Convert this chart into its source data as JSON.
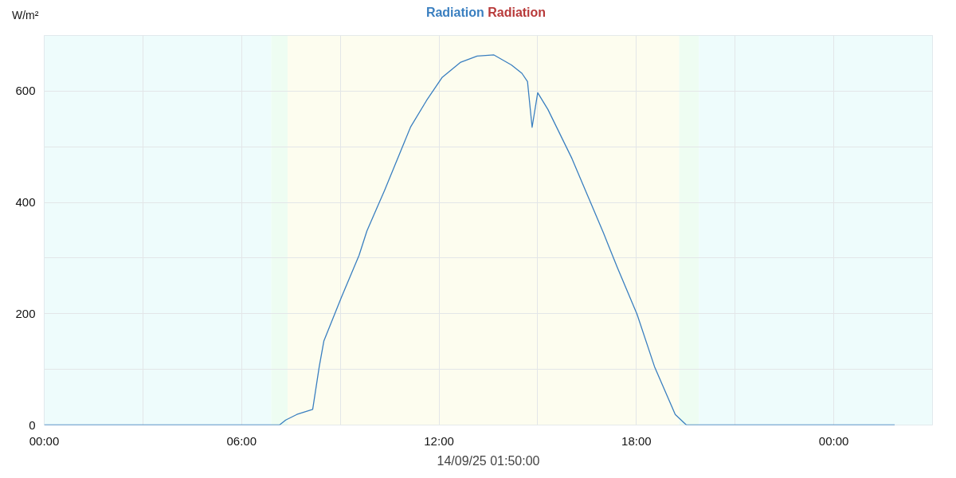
{
  "chart_data": {
    "type": "line",
    "title": "Radiation",
    "ylabel": "W/m²",
    "xlabel": "14/09/25 01:50:00",
    "legend": "top",
    "x": [
      0,
      7.15,
      7.34,
      7.68,
      8.16,
      8.36,
      8.5,
      9.03,
      9.57,
      9.81,
      10.34,
      11.14,
      11.62,
      12.1,
      12.66,
      13.16,
      13.67,
      14.2,
      14.52,
      14.69,
      14.83,
      15.0,
      15.31,
      16.04,
      16.52,
      17.0,
      17.42,
      18.02,
      18.55,
      19.18,
      19.52,
      25.85
    ],
    "series": [
      {
        "name": "Radiation",
        "color": "#3a7fc0",
        "values": [
          0,
          0,
          9,
          19,
          28,
          105,
          151,
          229,
          305,
          349,
          421,
          536,
          583,
          625,
          652,
          663,
          665,
          647,
          632,
          617,
          535,
          597,
          567,
          479,
          412,
          345,
          283,
          199,
          105,
          19,
          0,
          0
        ]
      }
    ],
    "xlim": [
      0,
      27
    ],
    "xticks": [
      {
        "value": 0,
        "label": "00:00"
      },
      {
        "value": 3,
        "label": null
      },
      {
        "value": 6,
        "label": "06:00"
      },
      {
        "value": 9,
        "label": null
      },
      {
        "value": 12,
        "label": "12:00"
      },
      {
        "value": 15,
        "label": null
      },
      {
        "value": 18,
        "label": "18:00"
      },
      {
        "value": 21,
        "label": null
      },
      {
        "value": 24,
        "label": "00:00"
      }
    ],
    "ylim": [
      0,
      700
    ],
    "yticks": [
      0,
      {
        "value": 100,
        "label": null
      },
      200,
      {
        "value": 300,
        "label": null
      },
      400,
      {
        "value": 500,
        "label": null
      },
      600
    ],
    "grid": true,
    "line_style": "solid",
    "marker": "none",
    "bands": [
      {
        "axis": "x",
        "from": 0,
        "to": 6.9,
        "color": "#eefcfc"
      },
      {
        "axis": "x",
        "from": 6.9,
        "to": 7.4,
        "color": "#eefdf2"
      },
      {
        "axis": "x",
        "from": 7.4,
        "to": 19.3,
        "color": "#fdfdef"
      },
      {
        "axis": "x",
        "from": 19.3,
        "to": 19.9,
        "color": "#eefdf2"
      },
      {
        "axis": "x",
        "from": 19.9,
        "to": 27,
        "color": "#eefcfc"
      }
    ]
  }
}
